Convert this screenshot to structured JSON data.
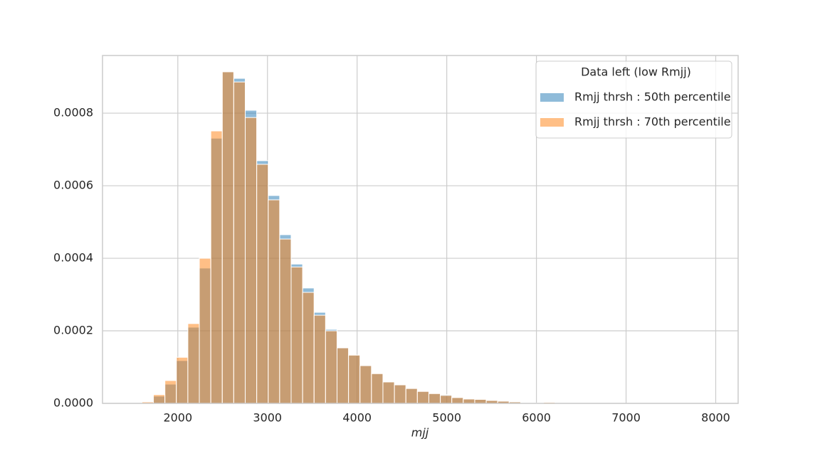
{
  "chart_data": {
    "type": "histogram",
    "xlabel": "mjj",
    "legend_title": "Data left (low Rmjj)",
    "legend_loc": "upper right",
    "grid": true,
    "bins": [
      1600,
      1728,
      1856,
      1984,
      2112,
      2240,
      2368,
      2496,
      2624,
      2752,
      2880,
      3008,
      3136,
      3264,
      3392,
      3520,
      3648,
      3776,
      3904,
      4032,
      4160,
      4288,
      4416,
      4544,
      4672,
      4800,
      4928,
      5056,
      5184,
      5312,
      5440,
      5568,
      5696,
      5824,
      5952,
      6080,
      6208,
      6336,
      6464,
      6592,
      6720,
      6848,
      6976,
      7104,
      7232,
      7360,
      7488,
      7616,
      7744,
      7872,
      8000
    ],
    "series": [
      {
        "name": "Rmjj thrsh : 50th percentile",
        "color": "#1f77b4",
        "values": [
          0,
          2e-05,
          5.3e-05,
          0.000118,
          0.00021,
          0.000373,
          0.000731,
          0.000914,
          0.000896,
          0.000808,
          0.000669,
          0.000573,
          0.000465,
          0.000384,
          0.000318,
          0.000251,
          0.000204,
          0.000153,
          0.000133,
          0.000104,
          8.2e-05,
          5.9e-05,
          5.1e-05,
          4.1e-05,
          3.3e-05,
          2.7e-05,
          2.4e-05,
          1.6e-05,
          1.2e-05,
          1.1e-05,
          8e-06,
          6e-06,
          4e-06,
          2e-06,
          1e-06,
          1e-06,
          0,
          0,
          0,
          0,
          0,
          0,
          0,
          0,
          0,
          0,
          0,
          0,
          0,
          0
        ]
      },
      {
        "name": "Rmjj thrsh : 70th percentile",
        "color": "#ff7f0e",
        "values": [
          4e-06,
          2.4e-05,
          6.3e-05,
          0.000127,
          0.00022,
          0.0004,
          0.000751,
          0.000914,
          0.000886,
          0.000788,
          0.000659,
          0.000561,
          0.000453,
          0.000376,
          0.000306,
          0.000243,
          0.0002,
          0.000153,
          0.000133,
          0.000104,
          8.2e-05,
          5.9e-05,
          5.1e-05,
          4.1e-05,
          3.3e-05,
          2.7e-05,
          2.2e-05,
          1.6e-05,
          1.2e-05,
          1.1e-05,
          8e-06,
          6e-06,
          4e-06,
          2e-06,
          1e-06,
          3e-06,
          0,
          0,
          0,
          0,
          0,
          0,
          0,
          0,
          0,
          0,
          0,
          0,
          0,
          0
        ]
      }
    ],
    "xlim": [
      1160,
      8250
    ],
    "ylim": [
      0,
      0.000959
    ],
    "xticks": [
      2000,
      3000,
      4000,
      5000,
      6000,
      7000,
      8000
    ],
    "yticks": [
      {
        "value": 0,
        "label": "0.0000"
      },
      0.0002,
      0.0004,
      0.0006,
      0.0008
    ]
  }
}
